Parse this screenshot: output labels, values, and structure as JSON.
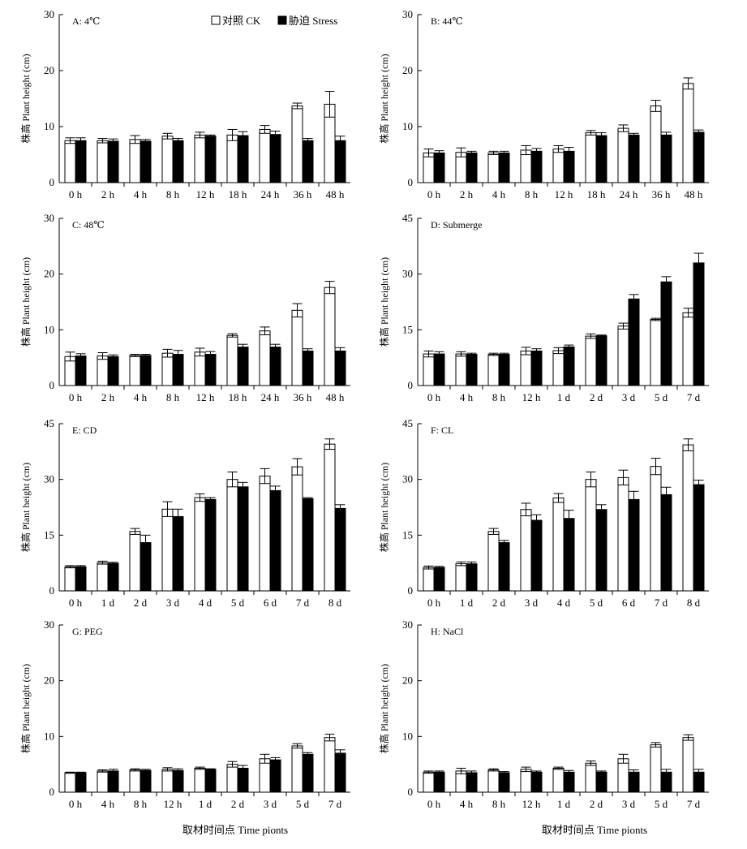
{
  "figure": {
    "xlabel": "取材时间点 Time pionts",
    "ylabel": "株高 Plant height (cm)",
    "legend": {
      "ck": "对照 CK",
      "stress": "胁迫 Stress"
    }
  },
  "chart_data": [
    {
      "type": "bar",
      "panel_label": "A: 4℃",
      "categories": [
        "0 h",
        "2 h",
        "4 h",
        "8 h",
        "12 h",
        "18 h",
        "24 h",
        "36 h",
        "48 h"
      ],
      "ylim": [
        0,
        30
      ],
      "yticks": [
        0,
        10,
        20,
        30
      ],
      "series": [
        {
          "name": "对照 CK",
          "values": [
            7.5,
            7.5,
            7.7,
            8.3,
            8.5,
            8.5,
            9.5,
            13.7,
            14.0
          ],
          "errors": [
            0.5,
            0.4,
            0.7,
            0.5,
            0.5,
            1.0,
            0.7,
            0.5,
            2.3
          ]
        },
        {
          "name": "胁迫 Stress",
          "values": [
            7.5,
            7.4,
            7.4,
            7.5,
            8.3,
            8.4,
            8.6,
            7.5,
            7.5
          ],
          "errors": [
            0.5,
            0.4,
            0.3,
            0.4,
            0.2,
            0.7,
            0.6,
            0.4,
            0.8
          ]
        }
      ]
    },
    {
      "type": "bar",
      "panel_label": "B: 44℃",
      "categories": [
        "0 h",
        "2 h",
        "4 h",
        "8 h",
        "12 h",
        "18 h",
        "24 h",
        "36 h",
        "48 h"
      ],
      "ylim": [
        0,
        30
      ],
      "yticks": [
        0,
        10,
        20,
        30
      ],
      "series": [
        {
          "name": "对照 CK",
          "values": [
            5.3,
            5.4,
            5.3,
            5.8,
            6.0,
            8.9,
            9.7,
            13.7,
            17.7
          ],
          "errors": [
            0.7,
            0.8,
            0.3,
            0.8,
            0.6,
            0.4,
            0.6,
            1.0,
            1.0
          ]
        },
        {
          "name": "胁迫 Stress",
          "values": [
            5.3,
            5.3,
            5.3,
            5.6,
            5.6,
            8.4,
            8.5,
            8.5,
            9.0
          ],
          "errors": [
            0.4,
            0.3,
            0.3,
            0.5,
            0.7,
            0.5,
            0.3,
            0.5,
            0.4
          ]
        }
      ]
    },
    {
      "type": "bar",
      "panel_label": "C: 48℃",
      "categories": [
        "0 h",
        "2 h",
        "4 h",
        "8 h",
        "12 h",
        "18 h",
        "24 h",
        "36 h",
        "48 h"
      ],
      "ylim": [
        0,
        30
      ],
      "yticks": [
        0,
        10,
        20,
        30
      ],
      "series": [
        {
          "name": "对照 CK",
          "values": [
            5.2,
            5.3,
            5.4,
            5.8,
            6.0,
            9.0,
            9.8,
            13.5,
            17.6
          ],
          "errors": [
            0.8,
            0.6,
            0.2,
            0.7,
            0.7,
            0.3,
            0.7,
            1.2,
            1.1
          ]
        },
        {
          "name": "胁迫 Stress",
          "values": [
            5.3,
            5.2,
            5.4,
            5.6,
            5.6,
            6.9,
            6.9,
            6.2,
            6.2
          ],
          "errors": [
            0.4,
            0.3,
            0.2,
            0.7,
            0.5,
            0.5,
            0.5,
            0.4,
            0.6
          ]
        }
      ]
    },
    {
      "type": "bar",
      "panel_label": "D: Submerge",
      "categories": [
        "0 h",
        "4 h",
        "8 h",
        "12 h",
        "1 d",
        "2 d",
        "3 d",
        "5 d",
        "7 d"
      ],
      "ylim": [
        0,
        45
      ],
      "yticks": [
        0,
        15,
        30,
        45
      ],
      "series": [
        {
          "name": "对照 CK",
          "values": [
            8.5,
            8.5,
            8.4,
            9.3,
            9.4,
            13.3,
            16.0,
            17.8,
            19.6
          ],
          "errors": [
            0.8,
            0.6,
            0.3,
            1.0,
            0.8,
            0.6,
            0.8,
            0.3,
            1.2
          ]
        },
        {
          "name": "胁迫 Stress",
          "values": [
            8.5,
            8.4,
            8.4,
            9.3,
            10.4,
            13.4,
            23.3,
            27.9,
            33.0
          ],
          "errors": [
            0.6,
            0.3,
            0.3,
            0.6,
            0.5,
            0.2,
            1.2,
            1.4,
            2.6
          ]
        }
      ]
    },
    {
      "type": "bar",
      "panel_label": "E: CD",
      "categories": [
        "0 h",
        "1 d",
        "2 d",
        "3 d",
        "4 d",
        "5 d",
        "6 d",
        "7 d",
        "8 d"
      ],
      "ylim": [
        0,
        45
      ],
      "yticks": [
        0,
        15,
        30,
        45
      ],
      "series": [
        {
          "name": "对照 CK",
          "values": [
            6.5,
            7.6,
            16.0,
            22.0,
            25.1,
            30.0,
            30.9,
            33.4,
            39.5
          ],
          "errors": [
            0.3,
            0.4,
            0.8,
            2.0,
            1.0,
            2.0,
            2.0,
            2.2,
            1.4
          ]
        },
        {
          "name": "胁迫 Stress",
          "values": [
            6.5,
            7.4,
            13.0,
            20.0,
            24.6,
            28.0,
            27.0,
            24.8,
            22.2
          ],
          "errors": [
            0.3,
            0.3,
            2.0,
            2.0,
            0.5,
            1.2,
            1.2,
            0.3,
            1.0
          ]
        }
      ]
    },
    {
      "type": "bar",
      "panel_label": "F: CL",
      "categories": [
        "0 h",
        "1 d",
        "2 d",
        "3 d",
        "4 d",
        "5 d",
        "6 d",
        "7 d",
        "8 d"
      ],
      "ylim": [
        0,
        45
      ],
      "yticks": [
        0,
        15,
        30,
        45
      ],
      "series": [
        {
          "name": "对照 CK",
          "values": [
            6.3,
            7.3,
            16.0,
            21.9,
            25.0,
            30.0,
            30.5,
            33.5,
            39.3
          ],
          "errors": [
            0.4,
            0.5,
            0.8,
            1.7,
            1.2,
            2.0,
            2.0,
            2.2,
            1.6
          ]
        },
        {
          "name": "胁迫 Stress",
          "values": [
            6.3,
            7.3,
            13.0,
            19.0,
            19.5,
            21.9,
            24.6,
            25.9,
            28.6
          ],
          "errors": [
            0.3,
            0.5,
            0.6,
            1.5,
            2.2,
            1.3,
            2.2,
            2.0,
            1.2
          ]
        }
      ]
    },
    {
      "type": "bar",
      "panel_label": "G: PEG",
      "categories": [
        "0 h",
        "4 h",
        "8 h",
        "12 h",
        "1 d",
        "2 d",
        "3 d",
        "5 d",
        "7 d"
      ],
      "ylim": [
        0,
        30
      ],
      "yticks": [
        0,
        10,
        20,
        30
      ],
      "series": [
        {
          "name": "对照 CK",
          "values": [
            3.5,
            3.8,
            4.0,
            4.1,
            4.3,
            5.0,
            6.0,
            8.3,
            9.8
          ],
          "errors": [
            0.1,
            0.2,
            0.2,
            0.3,
            0.2,
            0.5,
            0.8,
            0.4,
            0.6
          ]
        },
        {
          "name": "胁迫 Stress",
          "values": [
            3.5,
            3.8,
            3.9,
            3.9,
            4.1,
            4.3,
            5.8,
            6.8,
            7.0
          ],
          "errors": [
            0.1,
            0.3,
            0.2,
            0.3,
            0.1,
            0.5,
            0.4,
            0.3,
            0.6
          ]
        }
      ]
    },
    {
      "type": "bar",
      "panel_label": "H: NaCl",
      "categories": [
        "0 h",
        "4 h",
        "8 h",
        "12 h",
        "1 d",
        "2 d",
        "3 d",
        "5 d",
        "7 d"
      ],
      "ylim": [
        0,
        30
      ],
      "yticks": [
        0,
        10,
        20,
        30
      ],
      "series": [
        {
          "name": "对照 CK",
          "values": [
            3.6,
            3.8,
            4.0,
            4.1,
            4.3,
            5.2,
            6.0,
            8.5,
            9.8
          ],
          "errors": [
            0.2,
            0.5,
            0.2,
            0.4,
            0.2,
            0.4,
            0.8,
            0.4,
            0.5
          ]
        },
        {
          "name": "胁迫 Stress",
          "values": [
            3.6,
            3.5,
            3.5,
            3.6,
            3.6,
            3.6,
            3.6,
            3.6,
            3.6
          ],
          "errors": [
            0.2,
            0.3,
            0.2,
            0.2,
            0.3,
            0.2,
            0.4,
            0.5,
            0.5
          ]
        }
      ]
    }
  ]
}
